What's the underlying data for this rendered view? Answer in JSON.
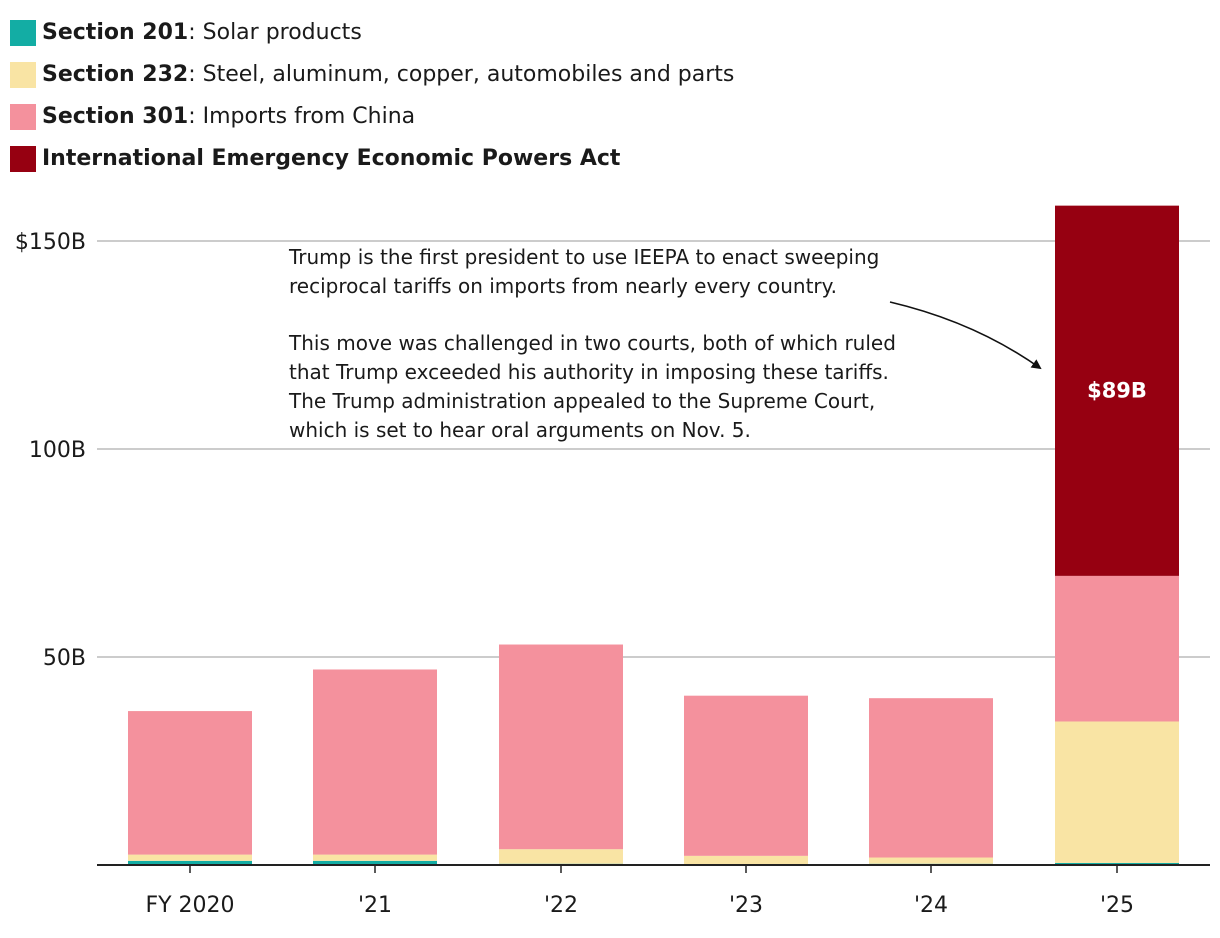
{
  "legend": [
    {
      "bold": "Section 201",
      "rest": ": Solar products",
      "color": "#13ada4"
    },
    {
      "bold": "Section 232",
      "rest": ": Steel, aluminum, copper, automobiles and parts",
      "color": "#f9e4a4"
    },
    {
      "bold": "Section 301",
      "rest": ": Imports from China",
      "color": "#f4919d"
    },
    {
      "bold": "International Emergency Economic Powers Act",
      "rest": "",
      "color": "#960011"
    }
  ],
  "annotation": {
    "paragraph1": "Trump is the first president to use IEEPA to enact sweeping reciprocal tariffs on imports from nearly every country.",
    "paragraph2": "This move was challenged in two courts, both of which ruled that Trump exceeded his authority in imposing these tariffs. The Trump administration appealed to the Supreme Court, which is set to hear oral arguments on Nov. 5."
  },
  "chart_data": {
    "type": "bar",
    "stacked": true,
    "categories": [
      "FY 2020",
      "'21",
      "'22",
      "'23",
      "'24",
      "'25"
    ],
    "series": [
      {
        "name": "Section 201: Solar products",
        "color": "#13ada4",
        "values": [
          1,
          1,
          0.3,
          0.2,
          0.3,
          0.5
        ]
      },
      {
        "name": "Section 232: Steel, aluminum, copper, automobiles and parts",
        "color": "#f9e4a4",
        "values": [
          1.5,
          1.5,
          3.5,
          2,
          1.5,
          34
        ]
      },
      {
        "name": "Section 301: Imports from China",
        "color": "#f4919d",
        "values": [
          34.5,
          44.5,
          49.2,
          38.5,
          38.3,
          35
        ]
      },
      {
        "name": "International Emergency Economic Powers Act",
        "color": "#960011",
        "values": [
          0,
          0,
          0,
          0,
          0,
          89
        ]
      }
    ],
    "ylim": [
      0,
      150
    ],
    "yticks": [
      {
        "value": 150,
        "label": "$150B"
      },
      {
        "value": 100,
        "label": "100B"
      },
      {
        "value": 50,
        "label": "50B"
      }
    ],
    "data_labels": [
      {
        "category": "'25",
        "series": "International Emergency Economic Powers Act",
        "text": "$89B"
      }
    ],
    "xlabel": "",
    "ylabel": ""
  }
}
